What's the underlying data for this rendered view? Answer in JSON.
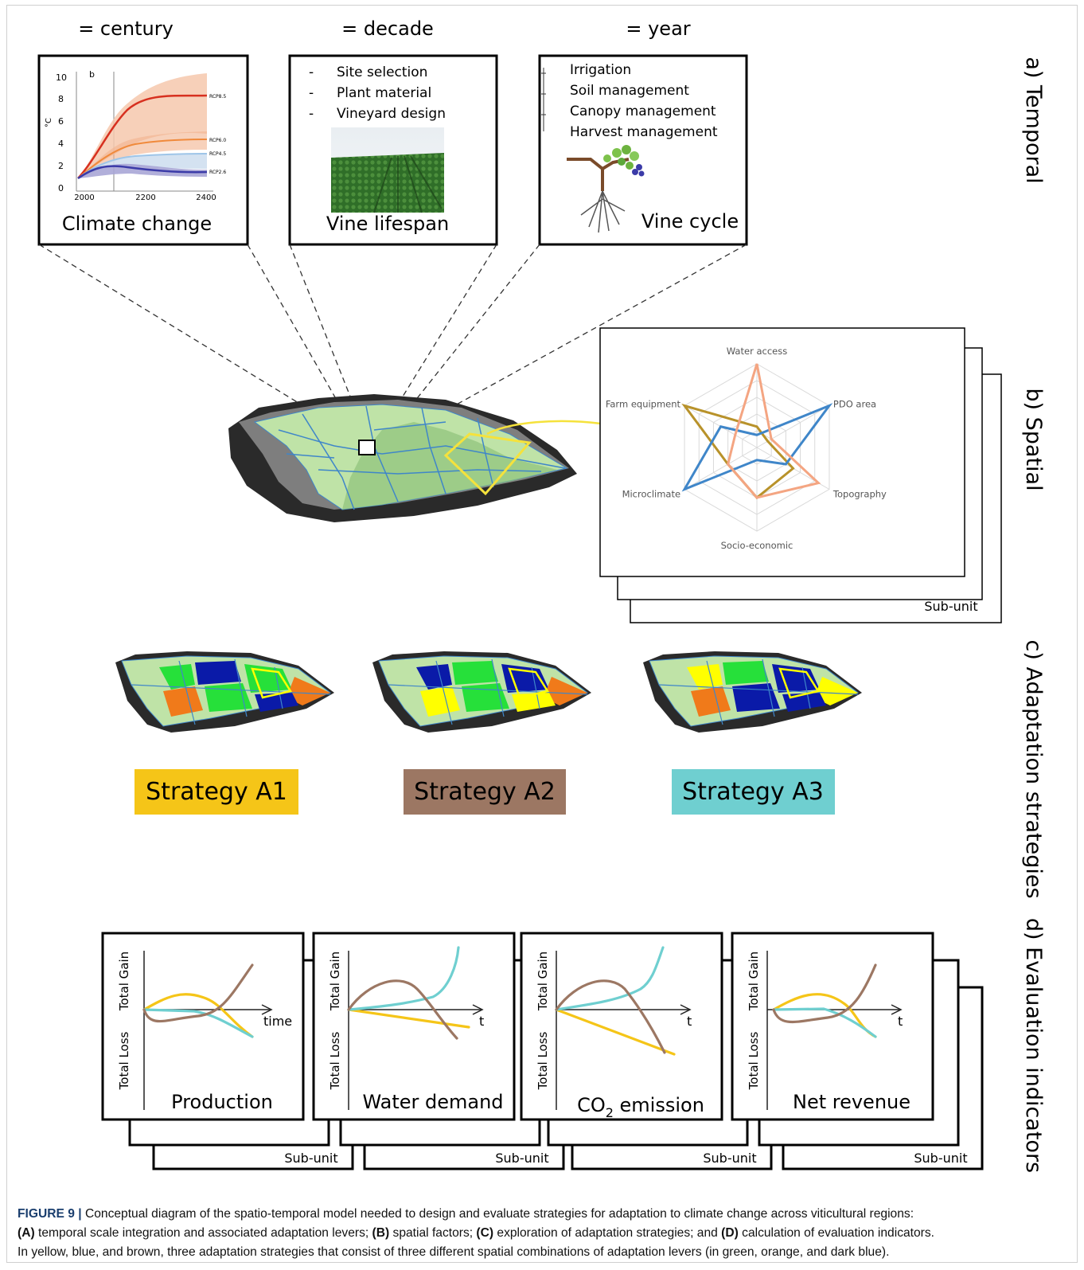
{
  "temporal": {
    "scales": [
      "= century",
      "= decade",
      "= year"
    ],
    "climate": {
      "title": "Climate change",
      "panel_letter": "b",
      "y_unit": "°C",
      "y_ticks": [
        "10",
        "8",
        "6",
        "4",
        "2",
        "0"
      ],
      "x_ticks": [
        "2000",
        "2200",
        "2400"
      ],
      "series": [
        "RCP8.5",
        "RCP6.0",
        "RCP4.5",
        "RCP2.6"
      ],
      "colors": {
        "rcp85": "#d7301f",
        "rcp60": "#f4a460",
        "rcp45": "#9ec5e8",
        "rcp26": "#3b3ba8"
      }
    },
    "vine_lifespan": {
      "title": "Vine lifespan",
      "bullet": "-",
      "items": [
        "Site selection",
        "Plant material",
        "Vineyard design"
      ]
    },
    "vine_cycle": {
      "title": "Vine cycle",
      "items": [
        "Irrigation",
        "Soil management",
        "Canopy management",
        "Harvest management"
      ]
    }
  },
  "section_labels": [
    "a) Temporal",
    "b) Spatial",
    "c) Adaptation strategies",
    "d) Evaluation indicators"
  ],
  "spatial": {
    "axes": [
      "Water access",
      "PDO area",
      "Topography",
      "Socio-economic",
      "Microclimate",
      "Farm equipment"
    ],
    "sub_unit": "Sub-unit",
    "colors": {
      "salmon": "#f4a582",
      "blue": "#3f86c9",
      "olive": "#b8922a",
      "grid": "#d9d9d9"
    }
  },
  "strategies": [
    {
      "label": "Strategy A1",
      "color": "#f5c518"
    },
    {
      "label": "Strategy A2",
      "color": "#9c7763"
    },
    {
      "label": "Strategy A3",
      "color": "#6fcfd0"
    }
  ],
  "indicators": {
    "y_top": "Total Gain",
    "y_bottom": "Total Loss",
    "sub_unit": "Sub-unit",
    "panels": [
      {
        "title": "Production",
        "x_label": "time"
      },
      {
        "title": "Water demand",
        "x_label": "t"
      },
      {
        "title_main": "CO",
        "title_sub": "2",
        "title_rest": " emission",
        "x_label": "t"
      },
      {
        "title": "Net revenue",
        "x_label": "t"
      }
    ],
    "line_colors": {
      "yellow": "#f5c518",
      "blue": "#6fcfd0",
      "brown": "#9c7763"
    }
  },
  "caption": {
    "figure": "FIGURE 9 |",
    "line1": " Conceptual diagram of the spatio-temporal model needed to design and evaluate strategies for adaptation to climate change across viticultural regions:",
    "a": "(A)",
    "a_text": " temporal scale integration and associated adaptation levers; ",
    "b": "(B)",
    "b_text": " spatial factors; ",
    "c": "(C)",
    "c_text": " exploration of adaptation strategies; and ",
    "d": "(D)",
    "d_text": " calculation of evaluation indicators.",
    "line3": "In yellow, blue, and brown, three adaptation strategies that consist of three different spatial combinations of adaptation levers (in green, orange, and dark blue)."
  }
}
